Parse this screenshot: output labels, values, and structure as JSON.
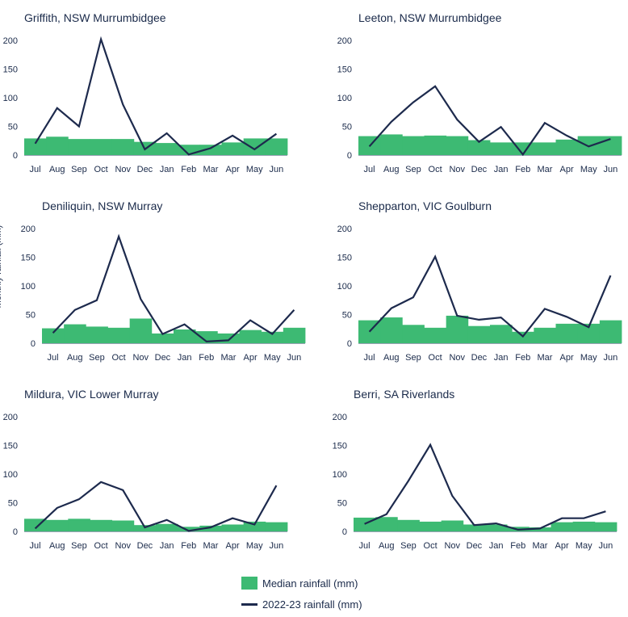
{
  "colors": {
    "median": "#3dba73",
    "rainfall": "#1d2a4d",
    "axis": "#1a2a4a"
  },
  "ylabel": "Monthly rainfall (mm)",
  "legend": {
    "median": "Median rainfall (mm)",
    "rainfall": "2022-23 rainfall (mm)"
  },
  "chart_data": [
    {
      "type": "bar+line",
      "title": "Griffith, NSW Murrumbidgee",
      "categories": [
        "Jul",
        "Aug",
        "Sep",
        "Oct",
        "Nov",
        "Dec",
        "Jan",
        "Feb",
        "Mar",
        "Apr",
        "May",
        "Jun"
      ],
      "yticks": [
        0,
        50,
        100,
        150,
        200
      ],
      "ylim": [
        0,
        200
      ],
      "series": [
        {
          "name": "Median rainfall (mm)",
          "type": "bar",
          "values": [
            29,
            32,
            28,
            28,
            28,
            23,
            21,
            18,
            18,
            22,
            29,
            29
          ]
        },
        {
          "name": "2022-23 rainfall (mm)",
          "type": "line",
          "values": [
            20,
            82,
            50,
            202,
            88,
            10,
            38,
            1,
            12,
            34,
            10,
            37
          ]
        }
      ]
    },
    {
      "type": "bar+line",
      "title": "Leeton, NSW Murrumbidgee",
      "categories": [
        "Jul",
        "Aug",
        "Sep",
        "Oct",
        "Nov",
        "Dec",
        "Jan",
        "Feb",
        "Mar",
        "Apr",
        "May",
        "Jun"
      ],
      "yticks": [
        0,
        50,
        100,
        150,
        200
      ],
      "ylim": [
        0,
        200
      ],
      "series": [
        {
          "name": "Median rainfall (mm)",
          "type": "bar",
          "values": [
            33,
            36,
            33,
            34,
            33,
            26,
            22,
            22,
            22,
            27,
            33,
            33
          ]
        },
        {
          "name": "2022-23 rainfall (mm)",
          "type": "line",
          "values": [
            15,
            58,
            92,
            120,
            62,
            23,
            49,
            1,
            56,
            34,
            15,
            28
          ]
        }
      ]
    },
    {
      "type": "bar+line",
      "title": "Deniliquin, NSW Murray",
      "categories": [
        "Jul",
        "Aug",
        "Sep",
        "Oct",
        "Nov",
        "Dec",
        "Jan",
        "Feb",
        "Mar",
        "Apr",
        "May",
        "Jun"
      ],
      "yticks": [
        0,
        50,
        100,
        150,
        200
      ],
      "ylim": [
        0,
        200
      ],
      "series": [
        {
          "name": "Median rainfall (mm)",
          "type": "bar",
          "values": [
            26,
            33,
            29,
            27,
            43,
            17,
            24,
            21,
            17,
            23,
            20,
            27
          ]
        },
        {
          "name": "2022-23 rainfall (mm)",
          "type": "line",
          "values": [
            18,
            58,
            75,
            186,
            77,
            16,
            33,
            3,
            5,
            40,
            16,
            58
          ]
        }
      ]
    },
    {
      "type": "bar+line",
      "title": "Shepparton, VIC Goulburn",
      "categories": [
        "Jul",
        "Aug",
        "Sep",
        "Oct",
        "Nov",
        "Dec",
        "Jan",
        "Feb",
        "Mar",
        "Apr",
        "May",
        "Jun"
      ],
      "yticks": [
        0,
        50,
        100,
        150,
        200
      ],
      "ylim": [
        0,
        200
      ],
      "series": [
        {
          "name": "Median rainfall (mm)",
          "type": "bar",
          "values": [
            40,
            45,
            32,
            27,
            48,
            30,
            32,
            20,
            27,
            34,
            34,
            40
          ]
        },
        {
          "name": "2022-23 rainfall (mm)",
          "type": "line",
          "values": [
            20,
            61,
            80,
            151,
            48,
            41,
            45,
            12,
            60,
            46,
            28,
            118
          ]
        }
      ]
    },
    {
      "type": "bar+line",
      "title": "Mildura, VIC Lower Murray",
      "categories": [
        "Jul",
        "Aug",
        "Sep",
        "Oct",
        "Nov",
        "Dec",
        "Jan",
        "Feb",
        "Mar",
        "Apr",
        "May",
        "Jun"
      ],
      "yticks": [
        0,
        50,
        100,
        150,
        200
      ],
      "ylim": [
        0,
        200
      ],
      "series": [
        {
          "name": "Median rainfall (mm)",
          "type": "bar",
          "values": [
            22,
            20,
            22,
            20,
            19,
            11,
            13,
            8,
            10,
            12,
            17,
            16
          ]
        },
        {
          "name": "2022-23 rainfall (mm)",
          "type": "line",
          "values": [
            5,
            41,
            56,
            86,
            72,
            7,
            20,
            1,
            7,
            23,
            12,
            80
          ]
        }
      ]
    },
    {
      "type": "bar+line",
      "title": "Berri, SA Riverlands",
      "categories": [
        "Jul",
        "Aug",
        "Sep",
        "Oct",
        "Nov",
        "Dec",
        "Jan",
        "Feb",
        "Mar",
        "Apr",
        "May",
        "Jun"
      ],
      "yticks": [
        0,
        50,
        100,
        150,
        200
      ],
      "ylim": [
        0,
        200
      ],
      "series": [
        {
          "name": "Median rainfall (mm)",
          "type": "bar",
          "values": [
            24,
            25,
            20,
            17,
            19,
            12,
            12,
            8,
            7,
            16,
            17,
            16
          ]
        },
        {
          "name": "2022-23 rainfall (mm)",
          "type": "line",
          "values": [
            13,
            30,
            88,
            151,
            62,
            11,
            14,
            3,
            5,
            23,
            23,
            35
          ]
        }
      ]
    }
  ]
}
